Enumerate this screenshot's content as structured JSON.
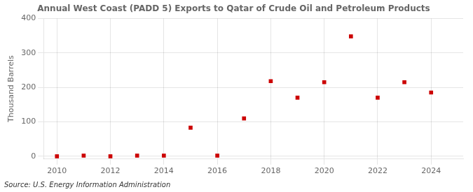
{
  "chart_data": {
    "type": "scatter",
    "title": "Annual West Coast (PADD 5) Exports to Qatar of Crude Oil and Petroleum Products",
    "ylabel": "Thousand Barrels",
    "source": "Source: U.S. Energy Information Administration",
    "x": [
      2010,
      2011,
      2012,
      2013,
      2014,
      2015,
      2016,
      2017,
      2018,
      2019,
      2020,
      2021,
      2022,
      2023,
      2024
    ],
    "values": [
      0,
      2,
      0,
      2,
      2,
      83,
      2,
      110,
      218,
      170,
      215,
      348,
      170,
      215,
      185
    ],
    "color": "#cc0000",
    "marker": "square",
    "xlim": [
      2009.5,
      2025.2
    ],
    "xticks": [
      2010,
      2012,
      2014,
      2016,
      2018,
      2020,
      2022,
      2024
    ],
    "ylim": [
      -8,
      400
    ],
    "yticks": [
      0,
      100,
      200,
      300,
      400
    ],
    "grid": true
  }
}
